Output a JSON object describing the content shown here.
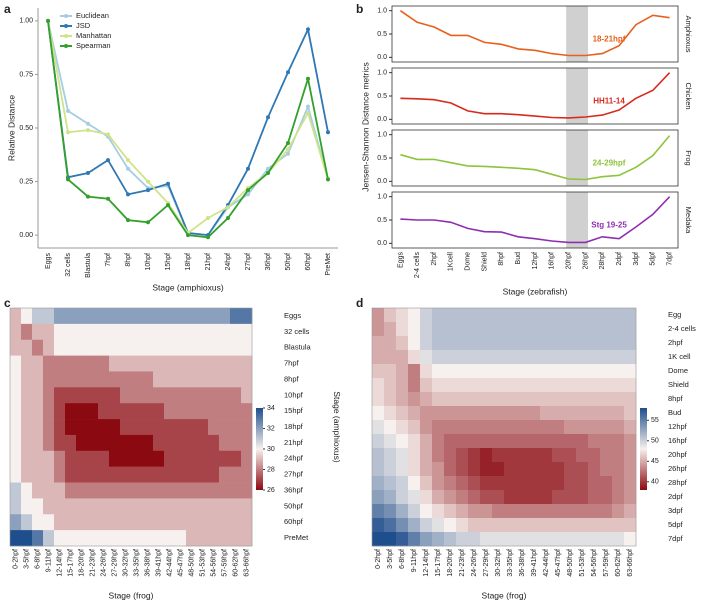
{
  "chart_data": [
    {
      "type": "line",
      "label": "a",
      "xlabel": "Stage (amphioxus)",
      "ylabel": "Relative Distance",
      "legend": "top-left",
      "categories": [
        "Eggs",
        "32 cells",
        "Blastula",
        "7hpf",
        "8hpf",
        "10hpf",
        "15hpf",
        "18hpf",
        "21hpf",
        "24hpf",
        "27hpf",
        "36hpf",
        "50hpf",
        "60hpf",
        "PreMet"
      ],
      "ylim": [
        -0.06,
        1.06
      ],
      "yticks": [
        {
          "value": 0,
          "label": "0.00"
        },
        {
          "value": 0.25,
          "label": "0.25"
        },
        {
          "value": 0.5,
          "label": "0.50"
        },
        {
          "value": 0.75,
          "label": "0.75"
        },
        {
          "value": 1,
          "label": "1.00"
        }
      ],
      "series": [
        {
          "name": "Euclidean",
          "color": "#a6cde3",
          "values": [
            1.0,
            0.58,
            0.52,
            0.46,
            0.31,
            0.22,
            0.23,
            0.01,
            0.0,
            0.13,
            0.19,
            0.31,
            0.38,
            0.6,
            0.26
          ]
        },
        {
          "name": "JSD",
          "color": "#2f78b4",
          "values": [
            1.0,
            0.27,
            0.29,
            0.35,
            0.19,
            0.21,
            0.24,
            0.01,
            0.0,
            0.14,
            0.31,
            0.55,
            0.76,
            0.96,
            0.48
          ]
        },
        {
          "name": "Manhattan",
          "color": "#cfe38a",
          "values": [
            1.0,
            0.48,
            0.49,
            0.47,
            0.35,
            0.25,
            0.15,
            0.01,
            0.08,
            0.13,
            0.22,
            0.29,
            0.4,
            0.57,
            0.26
          ]
        },
        {
          "name": "Spearman",
          "color": "#33a02c",
          "values": [
            1.0,
            0.26,
            0.18,
            0.17,
            0.07,
            0.06,
            0.14,
            0.0,
            -0.01,
            0.08,
            0.21,
            0.29,
            0.43,
            0.73,
            0.26
          ]
        }
      ]
    },
    {
      "type": "line_panels",
      "label": "b",
      "xlabel": "Stage (zebrafish)",
      "ylabel": "Jensen-Shannon Distance metrics",
      "categories": [
        "Eggs",
        "2-4 cells",
        "2hpf",
        "1Kcell",
        "Dome",
        "Shield",
        "8hpf",
        "Bud",
        "12hpf",
        "16hpf",
        "20hpf",
        "26hpf",
        "28hpf",
        "2dpf",
        "3dpf",
        "5dpf",
        "7dpf"
      ],
      "highlight": [
        "20hpf",
        "26hpf"
      ],
      "ylim": [
        -0.1,
        1.1
      ],
      "yticks": [
        {
          "value": 0,
          "label": "0.0"
        },
        {
          "value": 0.5,
          "label": "0.5"
        },
        {
          "value": 1,
          "label": "1.0"
        }
      ],
      "panels": [
        {
          "name": "Amphioxus",
          "color": "#e8601c",
          "annotation": "18-21hpf",
          "values": [
            1.0,
            0.75,
            0.65,
            0.47,
            0.47,
            0.32,
            0.28,
            0.18,
            0.15,
            0.08,
            0.04,
            0.04,
            0.08,
            0.25,
            0.7,
            0.9,
            0.85
          ]
        },
        {
          "name": "Chicken",
          "color": "#d62b1e",
          "annotation": "HH11-14",
          "values": [
            0.45,
            0.44,
            0.42,
            0.35,
            0.18,
            0.12,
            0.12,
            0.1,
            0.07,
            0.04,
            0.03,
            0.05,
            0.09,
            0.2,
            0.45,
            0.62,
            1.0
          ]
        },
        {
          "name": "Frog",
          "color": "#8cc43c",
          "annotation": "24-29hpf",
          "values": [
            0.57,
            0.47,
            0.47,
            0.4,
            0.33,
            0.32,
            0.3,
            0.28,
            0.25,
            0.15,
            0.05,
            0.04,
            0.1,
            0.13,
            0.3,
            0.55,
            0.98
          ]
        },
        {
          "name": "Medaka",
          "color": "#8e2fb0",
          "annotation": "Stg 19-25",
          "values": [
            0.52,
            0.5,
            0.5,
            0.45,
            0.32,
            0.25,
            0.24,
            0.14,
            0.1,
            0.05,
            0.02,
            0.02,
            0.14,
            0.1,
            0.35,
            0.62,
            1.0
          ]
        }
      ]
    },
    {
      "type": "heatmap",
      "label": "c",
      "xlabel": "Stage (frog)",
      "ylabel": "Stage (amphioxus)",
      "columns": [
        "0-2hpf",
        "3-5hpf",
        "6-8hpf",
        "9-11hpf",
        "12-14hpf",
        "15-17hpf",
        "18-20hpf",
        "21-23hpf",
        "24-26hpf",
        "27-29hpf",
        "30-32hpf",
        "33-35hpf",
        "36-38hpf",
        "39-41hpf",
        "42-44hpf",
        "45-47hpf",
        "48-50hpf",
        "51-53hpf",
        "54-56hpf",
        "57-59hpf",
        "60-62hpf",
        "63-66hpf"
      ],
      "rows": [
        "Eggs",
        "32 cells",
        "Blastula",
        "7hpf",
        "8hpf",
        "10hpf",
        "15hpf",
        "18hpf",
        "21hpf",
        "24hpf",
        "27hpf",
        "36hpf",
        "50hpf",
        "60hpf",
        "PreMet"
      ],
      "colors": [
        "#8b0a12",
        "#f6f1ee",
        "#1f4e8c"
      ],
      "clim": [
        26,
        34
      ],
      "cticks": [
        26,
        28,
        30,
        32,
        34
      ],
      "matrix": [
        [
          29,
          30,
          31,
          31,
          32,
          32,
          32,
          32,
          32,
          32,
          32,
          32,
          32,
          32,
          32,
          32,
          32,
          32,
          32,
          32,
          33,
          33
        ],
        [
          29,
          28,
          29,
          29,
          30,
          30,
          30,
          30,
          30,
          30,
          30,
          30,
          30,
          30,
          30,
          30,
          30,
          30,
          30,
          30,
          30,
          30
        ],
        [
          29,
          29,
          28,
          29,
          30,
          30,
          30,
          30,
          30,
          30,
          30,
          30,
          30,
          30,
          30,
          30,
          30,
          30,
          30,
          30,
          30,
          30
        ],
        [
          30,
          29,
          29,
          28,
          28,
          28,
          28,
          28,
          28,
          29,
          29,
          29,
          29,
          29,
          29,
          29,
          29,
          29,
          29,
          29,
          29,
          29
        ],
        [
          30,
          29,
          29,
          28,
          28,
          28,
          28,
          28,
          28,
          28,
          28,
          28,
          28,
          29,
          29,
          29,
          29,
          29,
          29,
          29,
          29,
          29
        ],
        [
          30,
          29,
          29,
          28,
          27,
          27,
          27,
          27,
          27,
          27,
          28,
          28,
          28,
          28,
          28,
          28,
          28,
          28,
          28,
          28,
          28,
          29
        ],
        [
          30,
          29,
          29,
          28,
          27,
          26,
          26,
          26,
          27,
          27,
          27,
          27,
          27,
          27,
          28,
          28,
          28,
          28,
          28,
          28,
          28,
          28
        ],
        [
          30,
          29,
          29,
          28,
          27,
          26,
          26,
          26,
          26,
          26,
          27,
          27,
          27,
          27,
          27,
          27,
          27,
          27,
          28,
          28,
          28,
          28
        ],
        [
          30,
          29,
          29,
          28,
          27,
          27,
          26,
          26,
          26,
          26,
          26,
          26,
          26,
          27,
          27,
          27,
          27,
          27,
          27,
          28,
          28,
          28
        ],
        [
          30,
          29,
          29,
          29,
          28,
          27,
          27,
          27,
          27,
          26,
          26,
          26,
          26,
          26,
          27,
          27,
          27,
          27,
          27,
          27,
          27,
          28
        ],
        [
          30,
          29,
          29,
          29,
          28,
          27,
          27,
          27,
          27,
          27,
          27,
          27,
          27,
          27,
          27,
          27,
          27,
          27,
          27,
          28,
          28,
          28
        ],
        [
          31,
          30,
          29,
          29,
          29,
          28,
          28,
          28,
          28,
          28,
          28,
          28,
          28,
          28,
          28,
          28,
          28,
          28,
          28,
          28,
          28,
          28
        ],
        [
          31,
          30,
          30,
          29,
          29,
          29,
          29,
          29,
          29,
          29,
          29,
          29,
          29,
          29,
          29,
          29,
          29,
          29,
          29,
          29,
          29,
          29
        ],
        [
          32,
          31,
          30,
          30,
          29,
          29,
          29,
          29,
          29,
          29,
          29,
          29,
          29,
          29,
          29,
          29,
          29,
          29,
          29,
          29,
          29,
          29
        ],
        [
          34,
          34,
          33,
          31,
          30,
          30,
          30,
          30,
          30,
          30,
          30,
          30,
          30,
          30,
          30,
          30,
          29,
          29,
          29,
          29,
          29,
          29
        ]
      ]
    },
    {
      "type": "heatmap",
      "label": "d",
      "xlabel": "Stage (frog)",
      "ylabel": "Stage (zebrafish)",
      "columns": [
        "0-2hpf",
        "3-5hpf",
        "6-8hpf",
        "9-11hpf",
        "12-14hpf",
        "15-17hpf",
        "18-20hpf",
        "21-23hpf",
        "24-26hpf",
        "27-29hpf",
        "30-32hpf",
        "33-35hpf",
        "36-38hpf",
        "39-41hpf",
        "42-44hpf",
        "45-47hpf",
        "48-50hpf",
        "51-53hpf",
        "54-56hpf",
        "57-59hpf",
        "60-62hpf",
        "63-66hpf"
      ],
      "rows": [
        "Egg",
        "2-4 cells",
        "2hpf",
        "1K cell",
        "Dome",
        "Shield",
        "8hpf",
        "Bud",
        "12hpf",
        "16hpf",
        "20hpf",
        "26hpf",
        "28hpf",
        "2dpf",
        "3dpf",
        "5dpf",
        "7dpf"
      ],
      "colors": [
        "#8b0a12",
        "#f6f1ee",
        "#1f4e8c"
      ],
      "clim": [
        38,
        58
      ],
      "cticks": [
        40,
        45,
        50,
        55
      ],
      "matrix": [
        [
          44,
          46,
          47,
          48,
          50,
          51,
          51,
          51,
          51,
          51,
          51,
          51,
          51,
          51,
          51,
          51,
          51,
          51,
          51,
          51,
          51,
          51
        ],
        [
          44,
          45,
          47,
          48,
          50,
          51,
          51,
          51,
          51,
          51,
          51,
          51,
          51,
          51,
          51,
          51,
          51,
          51,
          51,
          51,
          51,
          51
        ],
        [
          45,
          45,
          46,
          48,
          50,
          51,
          51,
          51,
          51,
          51,
          51,
          51,
          51,
          51,
          51,
          51,
          51,
          51,
          51,
          51,
          51,
          51
        ],
        [
          45,
          45,
          45,
          47,
          49,
          50,
          50,
          50,
          50,
          50,
          50,
          50,
          50,
          50,
          50,
          50,
          50,
          50,
          50,
          50,
          50,
          50
        ],
        [
          46,
          46,
          45,
          43,
          47,
          48,
          48,
          48,
          48,
          48,
          48,
          48,
          48,
          48,
          48,
          48,
          48,
          48,
          48,
          48,
          48,
          48
        ],
        [
          47,
          46,
          45,
          43,
          46,
          47,
          47,
          47,
          47,
          47,
          47,
          47,
          47,
          47,
          47,
          47,
          47,
          47,
          47,
          47,
          47,
          47
        ],
        [
          47,
          46,
          45,
          44,
          45,
          46,
          46,
          46,
          46,
          46,
          46,
          46,
          46,
          46,
          46,
          46,
          46,
          46,
          46,
          46,
          46,
          46
        ],
        [
          48,
          47,
          46,
          45,
          44,
          44,
          44,
          44,
          44,
          44,
          44,
          44,
          44,
          44,
          45,
          45,
          45,
          45,
          45,
          45,
          45,
          46
        ],
        [
          49,
          48,
          47,
          46,
          44,
          43,
          43,
          43,
          43,
          43,
          43,
          43,
          43,
          43,
          43,
          43,
          44,
          44,
          44,
          44,
          44,
          45
        ],
        [
          50,
          49,
          48,
          47,
          45,
          43,
          42,
          42,
          42,
          42,
          42,
          42,
          42,
          42,
          42,
          42,
          42,
          42,
          43,
          43,
          43,
          44
        ],
        [
          51,
          50,
          49,
          47,
          45,
          43,
          42,
          41,
          40,
          39,
          40,
          40,
          40,
          40,
          40,
          41,
          41,
          42,
          42,
          43,
          43,
          44
        ],
        [
          51,
          50,
          49,
          47,
          45,
          44,
          42,
          41,
          40,
          39,
          39,
          40,
          40,
          40,
          40,
          40,
          41,
          41,
          42,
          43,
          43,
          44
        ],
        [
          52,
          51,
          50,
          48,
          46,
          44,
          43,
          42,
          41,
          40,
          40,
          40,
          40,
          40,
          40,
          40,
          41,
          41,
          42,
          42,
          43,
          44
        ],
        [
          53,
          52,
          50,
          49,
          47,
          45,
          44,
          43,
          42,
          41,
          41,
          40,
          40,
          40,
          40,
          41,
          41,
          41,
          42,
          42,
          43,
          44
        ],
        [
          55,
          54,
          52,
          50,
          48,
          47,
          46,
          45,
          44,
          44,
          43,
          43,
          43,
          43,
          43,
          43,
          43,
          43,
          43,
          43,
          44,
          45
        ],
        [
          57,
          56,
          54,
          52,
          50,
          49,
          48,
          47,
          46,
          46,
          46,
          46,
          46,
          46,
          46,
          46,
          46,
          46,
          46,
          46,
          46,
          46
        ],
        [
          58,
          58,
          57,
          55,
          53,
          52,
          51,
          50,
          50,
          49,
          49,
          49,
          49,
          49,
          49,
          49,
          49,
          49,
          49,
          49,
          49,
          48
        ]
      ]
    }
  ]
}
